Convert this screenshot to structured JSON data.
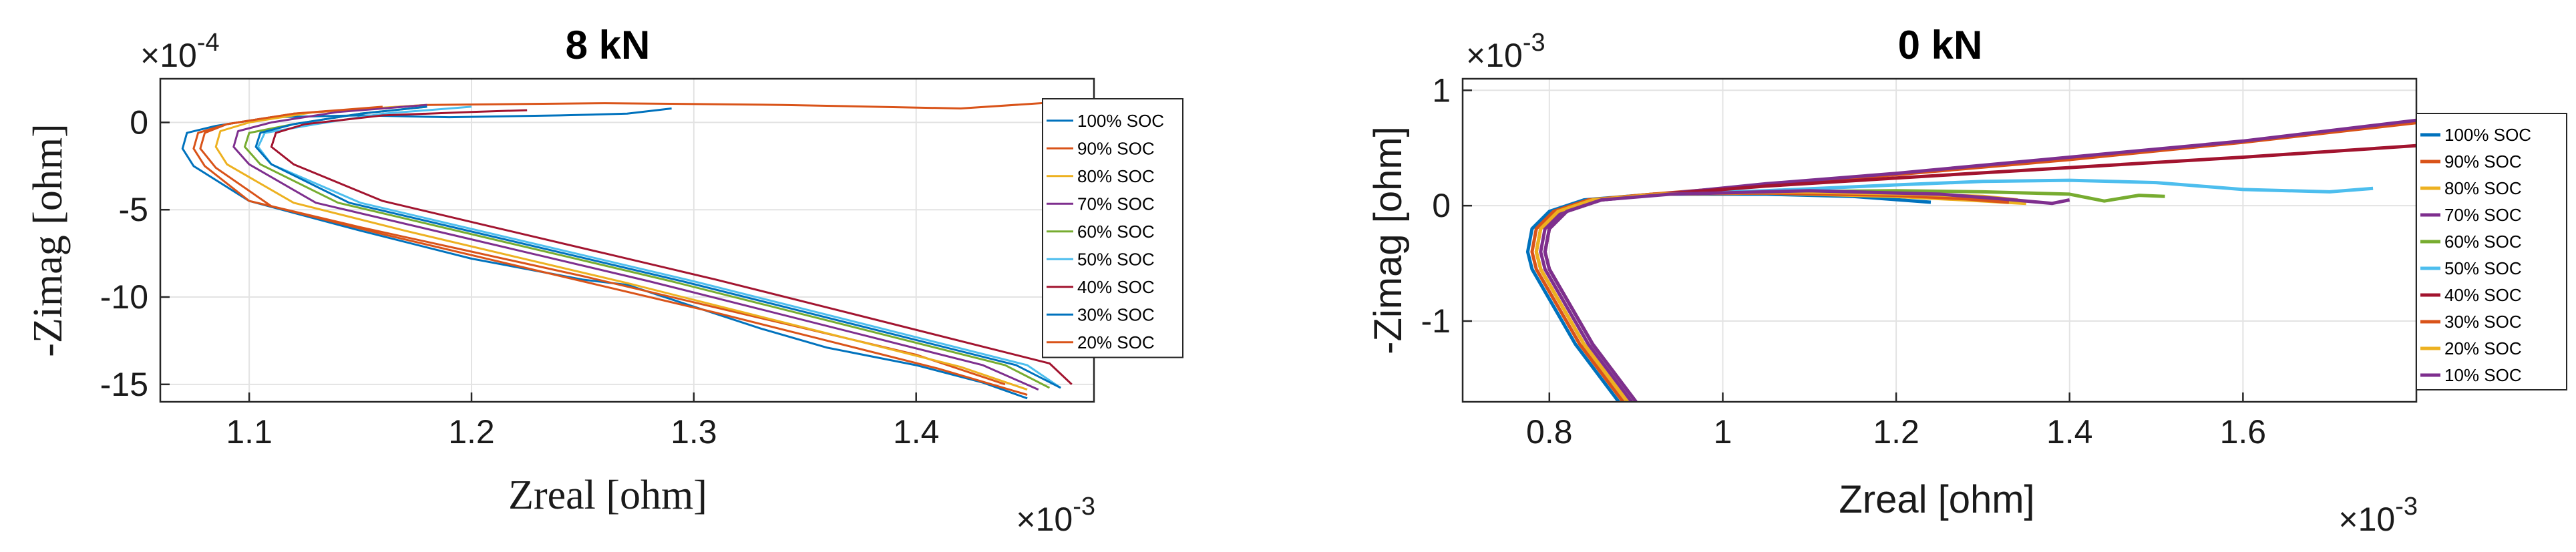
{
  "chart_data": [
    {
      "type": "line",
      "title": "8 kN",
      "xlabel": "Zreal [ohm]",
      "ylabel": "-Zimag [ohm]",
      "x_multiplier": "×10^{-3}",
      "y_multiplier": "×10^{-4}",
      "xlim": [
        1.06,
        1.48
      ],
      "ylim": [
        -16,
        2.5
      ],
      "xticks": [
        1.1,
        1.2,
        1.3,
        1.4
      ],
      "xtick_labels": [
        "1.1",
        "1.2",
        "1.3",
        "1.4"
      ],
      "yticks": [
        0,
        -5,
        -10,
        -15
      ],
      "ytick_labels": [
        "0",
        "-5",
        "-10",
        "-15"
      ],
      "grid": true,
      "legend_position": "top-right",
      "series": [
        {
          "name": "100% SOC",
          "color": "#0072BD",
          "x": [
            1.29,
            1.27,
            1.24,
            1.19,
            1.15,
            1.11,
            1.085,
            1.072,
            1.07,
            1.075,
            1.1,
            1.15,
            1.2,
            1.25,
            1.27,
            1.33,
            1.36,
            1.4,
            1.43,
            1.45
          ],
          "y": [
            0.8,
            0.5,
            0.4,
            0.3,
            0.4,
            0.3,
            -0.2,
            -0.6,
            -1.5,
            -2.5,
            -4.5,
            -6.2,
            -7.8,
            -9.0,
            -9.3,
            -11.8,
            -12.9,
            -13.9,
            -14.9,
            -15.8
          ]
        },
        {
          "name": "90% SOC",
          "color": "#D95319",
          "x": [
            1.48,
            1.42,
            1.34,
            1.26,
            1.18,
            1.12,
            1.09,
            1.077,
            1.075,
            1.08,
            1.1,
            1.15,
            1.2,
            1.25,
            1.3,
            1.35,
            1.4,
            1.44
          ],
          "y": [
            1.3,
            0.8,
            1.0,
            1.1,
            1.0,
            0.5,
            -0.1,
            -0.6,
            -1.5,
            -2.5,
            -4.5,
            -6.0,
            -7.4,
            -8.8,
            -10.3,
            -11.8,
            -13.3,
            -15.0
          ]
        },
        {
          "name": "80% SOC",
          "color": "#EDB120",
          "x": [
            1.18,
            1.13,
            1.1,
            1.087,
            1.085,
            1.09,
            1.12,
            1.17,
            1.22,
            1.27,
            1.32,
            1.37,
            1.42,
            1.45
          ],
          "y": [
            1.0,
            0.6,
            0.0,
            -0.5,
            -1.4,
            -2.4,
            -4.6,
            -6.2,
            -7.7,
            -9.2,
            -10.8,
            -12.4,
            -14.0,
            -15.3
          ]
        },
        {
          "name": "70% SOC",
          "color": "#7E2F8E",
          "x": [
            1.18,
            1.14,
            1.11,
            1.095,
            1.093,
            1.1,
            1.13,
            1.18,
            1.23,
            1.28,
            1.33,
            1.38,
            1.43,
            1.455
          ],
          "y": [
            1.0,
            0.6,
            0.0,
            -0.5,
            -1.4,
            -2.4,
            -4.6,
            -6.1,
            -7.6,
            -9.1,
            -10.7,
            -12.3,
            -13.9,
            -15.3
          ]
        },
        {
          "name": "60% SOC",
          "color": "#77AC30",
          "x": [
            1.18,
            1.15,
            1.12,
            1.1,
            1.098,
            1.105,
            1.14,
            1.19,
            1.24,
            1.29,
            1.34,
            1.39,
            1.44,
            1.46
          ],
          "y": [
            0.9,
            0.5,
            -0.1,
            -0.6,
            -1.4,
            -2.4,
            -4.6,
            -6.1,
            -7.6,
            -9.1,
            -10.7,
            -12.3,
            -13.9,
            -15.2
          ]
        },
        {
          "name": "50% SOC",
          "color": "#4DBEEE",
          "x": [
            1.2,
            1.16,
            1.13,
            1.107,
            1.104,
            1.11,
            1.15,
            1.2,
            1.25,
            1.3,
            1.35,
            1.4,
            1.45,
            1.465
          ],
          "y": [
            0.9,
            0.5,
            -0.1,
            -0.6,
            -1.4,
            -2.4,
            -4.6,
            -6.1,
            -7.6,
            -9.1,
            -10.7,
            -12.3,
            -13.9,
            -15.2
          ]
        },
        {
          "name": "40% SOC",
          "color": "#A2142F",
          "x": [
            1.225,
            1.2,
            1.16,
            1.125,
            1.112,
            1.11,
            1.12,
            1.16,
            1.21,
            1.26,
            1.31,
            1.36,
            1.41,
            1.46,
            1.47
          ],
          "y": [
            0.7,
            0.6,
            0.4,
            -0.1,
            -0.6,
            -1.4,
            -2.4,
            -4.5,
            -6.0,
            -7.5,
            -9.0,
            -10.6,
            -12.2,
            -13.8,
            -15.0
          ]
        },
        {
          "name": "30% SOC",
          "color": "#0072BD",
          "x": [
            1.18,
            1.15,
            1.12,
            1.105,
            1.103,
            1.11,
            1.145,
            1.195,
            1.245,
            1.295,
            1.345,
            1.395,
            1.445,
            1.465
          ],
          "y": [
            0.9,
            0.5,
            -0.1,
            -0.6,
            -1.4,
            -2.4,
            -4.6,
            -6.1,
            -7.6,
            -9.1,
            -10.7,
            -12.3,
            -13.9,
            -15.2
          ]
        },
        {
          "name": "20% SOC",
          "color": "#D95319",
          "x": [
            1.16,
            1.12,
            1.09,
            1.08,
            1.078,
            1.085,
            1.11,
            1.16,
            1.21,
            1.26,
            1.31,
            1.36,
            1.41,
            1.45
          ],
          "y": [
            0.9,
            0.5,
            -0.1,
            -0.6,
            -1.5,
            -2.6,
            -4.8,
            -6.4,
            -7.9,
            -9.4,
            -10.9,
            -12.5,
            -14.1,
            -15.6
          ]
        }
      ]
    },
    {
      "type": "line",
      "title": "0 kN",
      "xlabel": "Zreal [ohm]",
      "ylabel": "-Zimag [ohm]",
      "x_multiplier": "×10^{-3}",
      "y_multiplier": "×10^{-3}",
      "xlim": [
        0.7,
        1.8
      ],
      "ylim": [
        -1.7,
        1.1
      ],
      "xticks": [
        0.8,
        1.0,
        1.2,
        1.4,
        1.6
      ],
      "xtick_labels": [
        "0.8",
        "1",
        "1.2",
        "1.4",
        "1.6"
      ],
      "yticks": [
        1,
        0,
        -1
      ],
      "ytick_labels": [
        "1",
        "0",
        "-1"
      ],
      "grid": true,
      "legend_position": "top-right",
      "series": [
        {
          "name": "100% SOC",
          "color": "#0072BD",
          "x": [
            1.24,
            1.15,
            1.05,
            0.92,
            0.84,
            0.8,
            0.78,
            0.775,
            0.78,
            0.83,
            0.88
          ],
          "y": [
            0.03,
            0.08,
            0.1,
            0.1,
            0.05,
            -0.05,
            -0.2,
            -0.4,
            -0.55,
            -1.2,
            -1.7
          ]
        },
        {
          "name": "90% SOC",
          "color": "#D95319",
          "x": [
            1.8,
            1.6,
            1.4,
            1.2,
            1.05,
            0.92,
            0.845,
            0.805,
            0.785,
            0.78,
            0.785,
            0.835,
            0.885
          ],
          "y": [
            0.72,
            0.55,
            0.4,
            0.27,
            0.18,
            0.1,
            0.05,
            -0.05,
            -0.2,
            -0.4,
            -0.55,
            -1.2,
            -1.7
          ]
        },
        {
          "name": "80% SOC",
          "color": "#EDB120",
          "x": [
            1.35,
            1.28,
            1.2,
            1.05,
            0.92,
            0.85,
            0.81,
            0.79,
            0.785,
            0.79,
            0.84,
            0.89
          ],
          "y": [
            0.02,
            0.05,
            0.08,
            0.11,
            0.1,
            0.05,
            -0.05,
            -0.2,
            -0.4,
            -0.55,
            -1.2,
            -1.7
          ]
        },
        {
          "name": "70% SOC",
          "color": "#7E2F8E",
          "x": [
            1.8,
            1.6,
            1.4,
            1.2,
            1.05,
            0.93,
            0.855,
            0.815,
            0.795,
            0.79,
            0.795,
            0.845,
            0.895
          ],
          "y": [
            0.74,
            0.56,
            0.42,
            0.28,
            0.19,
            0.1,
            0.05,
            -0.05,
            -0.2,
            -0.4,
            -0.55,
            -1.2,
            -1.7
          ]
        },
        {
          "name": "60% SOC",
          "color": "#77AC30",
          "x": [
            1.51,
            1.48,
            1.44,
            1.4,
            1.3,
            1.2,
            1.05,
            0.93,
            0.86,
            0.82,
            0.8,
            0.795,
            0.8,
            0.85,
            0.9
          ],
          "y": [
            0.08,
            0.09,
            0.04,
            0.1,
            0.12,
            0.13,
            0.12,
            0.1,
            0.05,
            -0.05,
            -0.2,
            -0.4,
            -0.55,
            -1.2,
            -1.7
          ]
        },
        {
          "name": "50% SOC",
          "color": "#4DBEEE",
          "x": [
            1.75,
            1.7,
            1.6,
            1.5,
            1.4,
            1.3,
            1.2,
            1.05,
            0.93,
            0.86,
            0.82,
            0.8,
            0.795,
            0.8,
            0.85,
            0.9
          ],
          "y": [
            0.15,
            0.12,
            0.14,
            0.2,
            0.22,
            0.21,
            0.18,
            0.13,
            0.1,
            0.05,
            -0.05,
            -0.2,
            -0.4,
            -0.55,
            -1.2,
            -1.7
          ]
        },
        {
          "name": "40% SOC",
          "color": "#A2142F",
          "x": [
            1.8,
            1.6,
            1.4,
            1.2,
            1.05,
            0.93,
            0.86,
            0.82,
            0.8,
            0.795,
            0.8,
            0.85,
            0.9
          ],
          "y": [
            0.52,
            0.42,
            0.33,
            0.24,
            0.17,
            0.1,
            0.05,
            -0.05,
            -0.2,
            -0.4,
            -0.55,
            -1.2,
            -1.7
          ]
        },
        {
          "name": "30% SOC",
          "color": "#D95319",
          "x": [
            1.33,
            1.28,
            1.2,
            1.05,
            0.92,
            0.85,
            0.81,
            0.79,
            0.785,
            0.79,
            0.84,
            0.89
          ],
          "y": [
            0.03,
            0.06,
            0.09,
            0.11,
            0.1,
            0.05,
            -0.05,
            -0.2,
            -0.4,
            -0.55,
            -1.2,
            -1.7
          ]
        },
        {
          "name": "20% SOC",
          "color": "#EDB120",
          "x": [
            1.34,
            1.3,
            1.22,
            1.08,
            0.93,
            0.85,
            0.81,
            0.79,
            0.785,
            0.79,
            0.84,
            0.89
          ],
          "y": [
            0.05,
            0.08,
            0.1,
            0.12,
            0.1,
            0.05,
            -0.05,
            -0.2,
            -0.4,
            -0.55,
            -1.2,
            -1.7
          ]
        },
        {
          "name": "10% SOC",
          "color": "#7E2F8E",
          "x": [
            1.4,
            1.38,
            1.32,
            1.25,
            1.1,
            0.94,
            0.86,
            0.82,
            0.8,
            0.795,
            0.8,
            0.85,
            0.9
          ],
          "y": [
            0.05,
            0.02,
            0.06,
            0.1,
            0.13,
            0.1,
            0.05,
            -0.05,
            -0.2,
            -0.4,
            -0.55,
            -1.2,
            -1.7
          ]
        }
      ]
    }
  ]
}
